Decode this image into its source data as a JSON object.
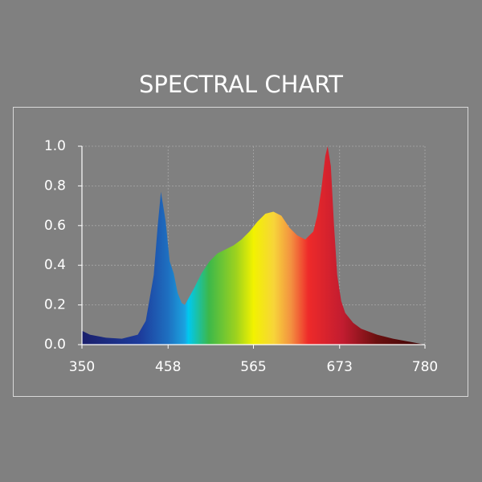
{
  "chart_data": {
    "type": "area",
    "title": "SPECTRAL CHART",
    "x": [
      350,
      360,
      380,
      400,
      420,
      430,
      440,
      445,
      449,
      455,
      460,
      465,
      470,
      475,
      479,
      490,
      500,
      510,
      520,
      530,
      540,
      550,
      560,
      570,
      580,
      590,
      600,
      610,
      620,
      630,
      640,
      645,
      650,
      655,
      658,
      662,
      666,
      670,
      675,
      680,
      690,
      700,
      720,
      740,
      760,
      780
    ],
    "values": [
      0.07,
      0.05,
      0.035,
      0.03,
      0.05,
      0.12,
      0.35,
      0.6,
      0.77,
      0.62,
      0.42,
      0.36,
      0.26,
      0.21,
      0.2,
      0.28,
      0.36,
      0.42,
      0.46,
      0.48,
      0.5,
      0.53,
      0.57,
      0.62,
      0.66,
      0.67,
      0.65,
      0.59,
      0.55,
      0.53,
      0.57,
      0.65,
      0.78,
      0.95,
      1.0,
      0.9,
      0.6,
      0.35,
      0.22,
      0.16,
      0.11,
      0.08,
      0.05,
      0.03,
      0.015,
      0.0
    ],
    "xlim": [
      350,
      780
    ],
    "ylim": [
      0,
      1
    ],
    "xticks": [
      350,
      458,
      565,
      673,
      780
    ],
    "yticks": [
      {
        "value": 0,
        "label": "0.0"
      },
      0.2,
      0.4,
      0.6,
      0.8,
      {
        "value": 1,
        "label": "1.0"
      }
    ],
    "grid": true
  }
}
